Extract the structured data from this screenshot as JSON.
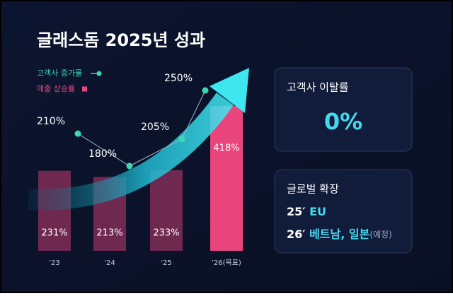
{
  "chart_data": {
    "type": "bar",
    "title": "글래스돔 2025년 성과",
    "categories": [
      "'23",
      "'24",
      "'25",
      "'26(목표)"
    ],
    "series": [
      {
        "name": "고객사 증가율",
        "type": "line",
        "color": "#3fd6b0",
        "values": [
          210,
          180,
          205,
          250
        ],
        "value_labels": [
          "210%",
          "180%",
          "205%",
          "250%"
        ]
      },
      {
        "name": "매출 상승률",
        "type": "bar",
        "color": "#e8457c",
        "values": [
          231,
          213,
          233,
          418
        ],
        "value_labels": [
          "231%",
          "213%",
          "233%",
          "418%"
        ]
      }
    ]
  },
  "cards": [
    {
      "title": "고객사 이탈률",
      "value": "0%"
    },
    {
      "title": "글로벌 확장",
      "items": [
        {
          "year": "25′",
          "text": "EU"
        },
        {
          "year": "26′",
          "text": "베트남, 일본",
          "note": "(예정)"
        }
      ]
    }
  ]
}
